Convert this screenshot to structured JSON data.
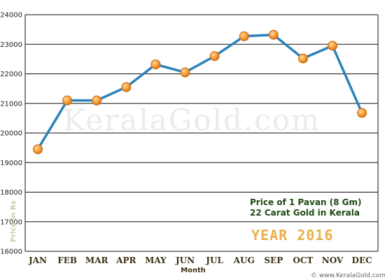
{
  "chart_data": {
    "type": "line",
    "categories": [
      "JAN",
      "FEB",
      "MAR",
      "APR",
      "MAY",
      "JUN",
      "JUL",
      "AUG",
      "SEP",
      "OCT",
      "NOV",
      "DEC"
    ],
    "values": [
      19450,
      21100,
      21100,
      21550,
      22320,
      22050,
      22600,
      23270,
      23320,
      22520,
      22950,
      20680
    ],
    "xlabel": "Month",
    "ylabel": "Price in Rs",
    "ylim": [
      16000,
      24000
    ],
    "yticks": [
      16000,
      17000,
      18000,
      19000,
      20000,
      21000,
      22000,
      23000,
      24000
    ],
    "grid": "horizontal",
    "line_color": "#2e82b8",
    "marker_color": "#f29a2e"
  },
  "annotation": {
    "line1": "Price of 1 Pavan (8 Gm)",
    "line2": "22 Carat Gold in Kerala",
    "year": "YEAR 2016"
  },
  "watermark": "KeralaGold.com",
  "footer": "© www.KeralaGold.com"
}
